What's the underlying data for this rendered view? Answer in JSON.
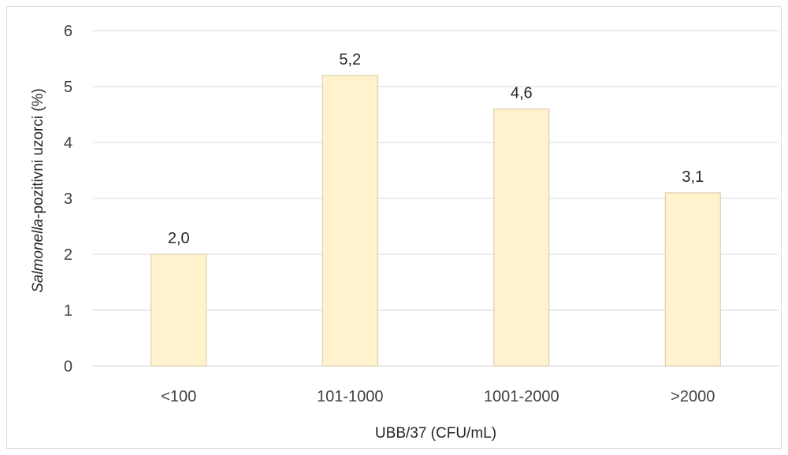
{
  "chart_data": {
    "type": "bar",
    "categories": [
      "<100",
      "101-1000",
      "1001-2000",
      ">2000"
    ],
    "values": [
      2.0,
      5.2,
      4.6,
      3.1
    ],
    "data_labels": [
      "2,0",
      "5,2",
      "4,6",
      "3,1"
    ],
    "yticks": [
      "0",
      "1",
      "2",
      "3",
      "4",
      "5",
      "6"
    ],
    "ylim": [
      0,
      6
    ],
    "xlabel": "UBB/37 (CFU/mL)",
    "ylabel_italic": "Salmonella",
    "ylabel_rest": "-pozitivni uzorci (%)",
    "grid": true,
    "legend": "none"
  },
  "colors": {
    "bar_fill": "#fff2cc",
    "gridline": "#d9d9d9",
    "text": "#404040"
  }
}
